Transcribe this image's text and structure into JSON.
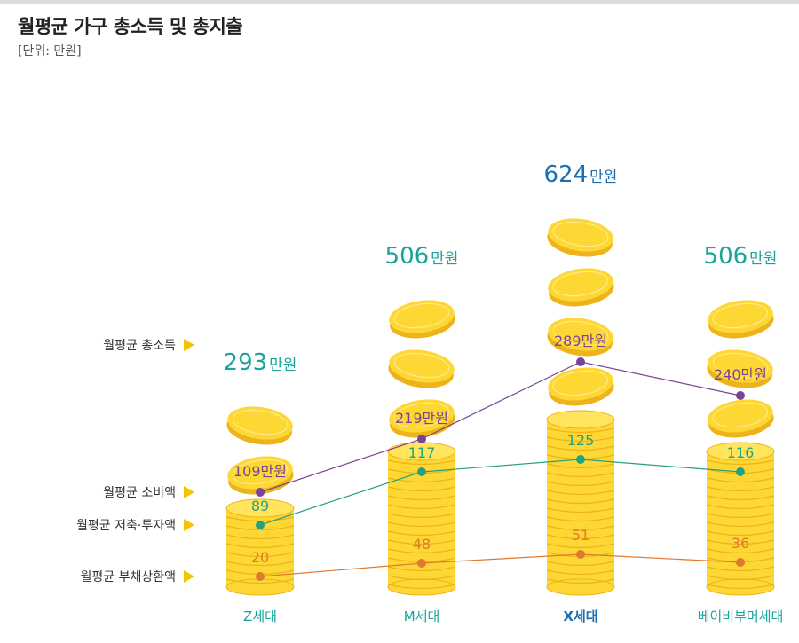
{
  "title": "월평균 가구 총소득 및 총지출",
  "unit": "[단위: 만원]",
  "colors": {
    "coin_fill": "#fdd835",
    "coin_edge": "#eeb31a",
    "income_text": "#1aa39a",
    "income_text_x": "#1b6fb3",
    "spending": "#7b4394",
    "savings": "#26a17e",
    "debt": "#e0782e",
    "arrow": "#f5c400"
  },
  "chart_data": {
    "type": "line",
    "categories": [
      "Z세대",
      "M세대",
      "X세대",
      "베이비부머세대"
    ],
    "ylabels_left": {
      "income": "월평균 총소득",
      "spending": "월평균 소비액",
      "savings": "월평균 저축·투자액",
      "debt": "월평균 부채상환액"
    },
    "income": {
      "values": [
        293,
        506,
        624,
        506
      ],
      "labels": [
        "293만원",
        "506만원",
        "624만원",
        "506만원"
      ]
    },
    "series": [
      {
        "key": "spending",
        "values": [
          109,
          219,
          289,
          240
        ],
        "labels": [
          "109만원",
          "219만원",
          "289만원",
          "240만원"
        ]
      },
      {
        "key": "savings",
        "values": [
          89,
          117,
          125,
          116
        ],
        "labels": [
          "89",
          "117",
          "125",
          "116"
        ]
      },
      {
        "key": "debt",
        "values": [
          20,
          48,
          51,
          36
        ],
        "labels": [
          "20",
          "48",
          "51",
          "36"
        ]
      }
    ]
  }
}
